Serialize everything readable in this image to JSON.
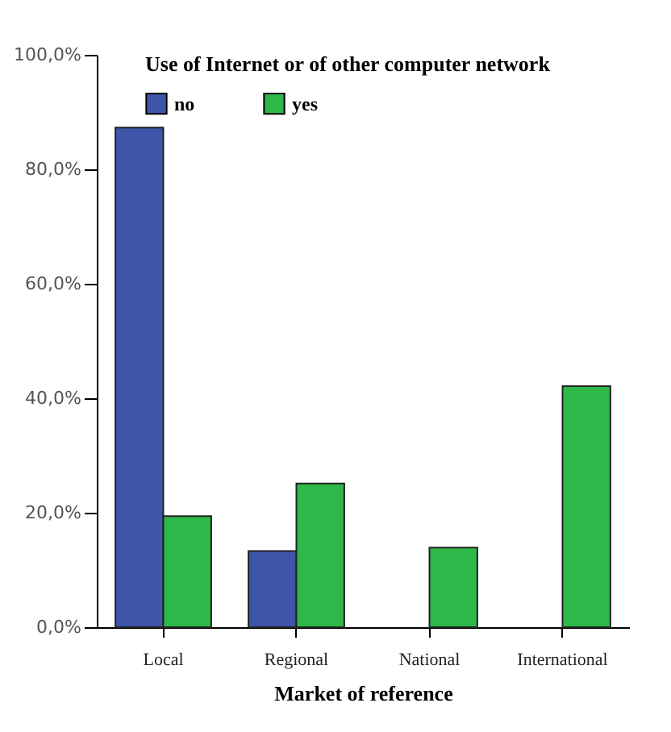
{
  "chart_data": {
    "type": "bar",
    "xlabel": "Market of reference",
    "legend_title": "Use of Internet or of other computer network",
    "categories": [
      "Local",
      "Regional",
      "National",
      "International"
    ],
    "series": [
      {
        "name": "no",
        "color": "#3d56a8",
        "values": [
          87.3,
          13.3,
          null,
          null
        ]
      },
      {
        "name": "yes",
        "color": "#2eb84a",
        "values": [
          19.4,
          25.1,
          13.9,
          42.1
        ]
      }
    ],
    "ylim": [
      0,
      100
    ],
    "yticks": [
      {
        "value": 0,
        "label": "0,0%"
      },
      {
        "value": 20,
        "label": "20,0%"
      },
      {
        "value": 40,
        "label": "40,0%"
      },
      {
        "value": 60,
        "label": "60,0%"
      },
      {
        "value": 80,
        "label": "80,0%"
      },
      {
        "value": 100,
        "label": "100,0%"
      }
    ],
    "grid": false,
    "legend": "top"
  }
}
